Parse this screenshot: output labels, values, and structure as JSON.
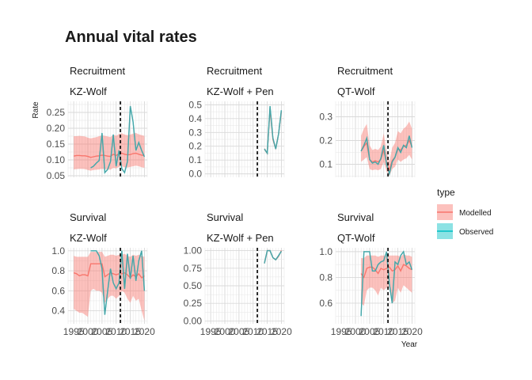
{
  "title": "Annual vital rates",
  "chart_data": {
    "type": "line",
    "title": "Annual vital rates",
    "xlabel": "Year",
    "ylabel": "Rate",
    "grid": true,
    "legend": {
      "title": "type",
      "placement": "right",
      "entries": [
        {
          "name": "Modelled",
          "color": "#F8766D"
        },
        {
          "name": "Observed",
          "color": "#00BFC4"
        }
      ]
    },
    "xlim": [
      1993,
      2021
    ],
    "xticks": [
      1995,
      2000,
      2005,
      2010,
      2015,
      2020
    ],
    "xtick_labels": [
      "1995",
      "2000",
      "2005",
      "2010",
      "2015",
      "2020"
    ],
    "vline_x": 2011.5,
    "colors": {
      "modelled_line": "#F8766D",
      "modelled_ribbon": "#F8766D",
      "observed_line": "#00BFC4",
      "overlap_line": "#8C8C8C",
      "vline": "#000000",
      "grid": "#e5e5e5"
    },
    "panels": [
      {
        "rate": "Recruitment",
        "population": "KZ-Wolf",
        "ylim": [
          0.045,
          0.285
        ],
        "yticks": [
          0.05,
          0.1,
          0.15,
          0.2,
          0.25
        ],
        "ytick_labels": [
          "0.05",
          "0.10",
          "0.15",
          "0.20",
          "0.25"
        ],
        "modelled": {
          "x": [
            1995,
            1996,
            1997,
            1998,
            1999,
            2000,
            2001,
            2002,
            2003,
            2004,
            2005,
            2006,
            2007,
            2008,
            2009,
            2010,
            2011,
            2012,
            2013,
            2014,
            2015,
            2016,
            2017,
            2018,
            2019,
            2020
          ],
          "y": [
            0.112,
            0.114,
            0.114,
            0.113,
            0.113,
            0.111,
            0.108,
            0.11,
            0.112,
            0.113,
            0.115,
            0.114,
            0.112,
            0.111,
            0.118,
            0.114,
            0.12,
            0.121,
            0.118,
            0.116,
            0.117,
            0.12,
            0.121,
            0.118,
            0.115,
            0.114
          ],
          "lower": [
            0.07,
            0.071,
            0.072,
            0.072,
            0.071,
            0.068,
            0.066,
            0.068,
            0.069,
            0.07,
            0.072,
            0.071,
            0.07,
            0.069,
            0.075,
            0.073,
            0.078,
            0.08,
            0.077,
            0.076,
            0.078,
            0.08,
            0.082,
            0.08,
            0.077,
            0.075
          ],
          "upper": [
            0.175,
            0.175,
            0.176,
            0.175,
            0.174,
            0.17,
            0.168,
            0.17,
            0.172,
            0.175,
            0.178,
            0.176,
            0.174,
            0.172,
            0.18,
            0.176,
            0.182,
            0.184,
            0.18,
            0.178,
            0.18,
            0.183,
            0.185,
            0.181,
            0.178,
            0.176
          ]
        },
        "observed": {
          "x": [
            2001,
            2002,
            2003,
            2004,
            2005,
            2006,
            2007,
            2008,
            2009,
            2010,
            2011,
            2012,
            2013,
            2014,
            2015,
            2016,
            2017,
            2018,
            2019,
            2020
          ],
          "y": [
            0.075,
            0.08,
            0.09,
            0.098,
            0.185,
            0.06,
            0.07,
            0.095,
            0.18,
            0.08,
            0.13,
            0.072,
            0.06,
            0.095,
            0.27,
            0.22,
            0.13,
            0.155,
            0.13,
            0.11
          ]
        }
      },
      {
        "rate": "Recruitment",
        "population": "KZ-Wolf + Pen",
        "ylim": [
          -0.025,
          0.525
        ],
        "yticks": [
          0.0,
          0.1,
          0.2,
          0.3,
          0.4,
          0.5
        ],
        "ytick_labels": [
          "0.0",
          "0.1",
          "0.2",
          "0.3",
          "0.4",
          "0.5"
        ],
        "modelled": {
          "x": [
            2014,
            2015,
            2016,
            2017,
            2018,
            2019,
            2020
          ],
          "y": [
            0.18,
            0.15,
            0.47,
            0.25,
            0.18,
            0.29,
            0.45
          ],
          "lower": [
            0.17,
            0.14,
            0.45,
            0.24,
            0.17,
            0.28,
            0.44
          ],
          "upper": [
            0.19,
            0.16,
            0.49,
            0.26,
            0.19,
            0.3,
            0.46
          ]
        },
        "observed": {
          "x": [
            2014,
            2015,
            2016,
            2017,
            2018,
            2019,
            2020
          ],
          "y": [
            0.18,
            0.15,
            0.49,
            0.26,
            0.18,
            0.29,
            0.46
          ]
        }
      },
      {
        "rate": "Recruitment",
        "population": "QT-Wolf",
        "ylim": [
          0.045,
          0.365
        ],
        "yticks": [
          0.1,
          0.2,
          0.3
        ],
        "ytick_labels": [
          "0.1",
          "0.2",
          "0.3"
        ],
        "modelled": {
          "x": [
            2002,
            2003,
            2004,
            2005,
            2006,
            2007,
            2008,
            2009,
            2010,
            2011,
            2012,
            2013,
            2014,
            2015,
            2016,
            2017,
            2018,
            2019,
            2020
          ],
          "y": [
            0.155,
            0.175,
            0.19,
            0.12,
            0.11,
            0.115,
            0.11,
            0.12,
            0.16,
            0.105,
            0.075,
            0.115,
            0.13,
            0.165,
            0.16,
            0.175,
            0.18,
            0.2,
            0.175
          ],
          "lower": [
            0.11,
            0.12,
            0.13,
            0.08,
            0.075,
            0.078,
            0.075,
            0.08,
            0.11,
            0.07,
            0.05,
            0.08,
            0.09,
            0.12,
            0.11,
            0.12,
            0.125,
            0.14,
            0.12
          ],
          "upper": [
            0.22,
            0.25,
            0.27,
            0.18,
            0.16,
            0.165,
            0.16,
            0.175,
            0.23,
            0.155,
            0.11,
            0.17,
            0.19,
            0.24,
            0.23,
            0.25,
            0.26,
            0.28,
            0.25
          ]
        },
        "observed": {
          "x": [
            2002,
            2003,
            2004,
            2005,
            2006,
            2007,
            2008,
            2009,
            2010,
            2011,
            2012,
            2013,
            2014,
            2015,
            2016,
            2017,
            2018,
            2019,
            2020
          ],
          "y": [
            0.155,
            0.18,
            0.21,
            0.12,
            0.105,
            0.11,
            0.1,
            0.125,
            0.18,
            0.1,
            0.06,
            0.11,
            0.13,
            0.17,
            0.15,
            0.18,
            0.17,
            0.22,
            0.17
          ]
        }
      },
      {
        "rate": "Survival",
        "population": "KZ-Wolf",
        "ylim": [
          0.27,
          1.03
        ],
        "yticks": [
          0.4,
          0.6,
          0.8,
          1.0
        ],
        "ytick_labels": [
          "0.4",
          "0.6",
          "0.8",
          "1.0"
        ],
        "modelled": {
          "x": [
            1995,
            1996,
            1997,
            1998,
            1999,
            2000,
            2001,
            2002,
            2003,
            2004,
            2005,
            2006,
            2007,
            2008,
            2009,
            2010,
            2011,
            2012,
            2013,
            2014,
            2015,
            2016,
            2017,
            2018,
            2019,
            2020
          ],
          "y": [
            0.78,
            0.77,
            0.75,
            0.76,
            0.76,
            0.75,
            0.87,
            0.87,
            0.87,
            0.87,
            0.87,
            0.74,
            0.76,
            0.78,
            0.77,
            0.76,
            0.77,
            0.77,
            0.78,
            0.76,
            0.73,
            0.76,
            0.74,
            0.77,
            0.73,
            0.75
          ],
          "lower": [
            0.42,
            0.4,
            0.38,
            0.38,
            0.36,
            0.34,
            0.6,
            0.62,
            0.6,
            0.6,
            0.58,
            0.48,
            0.52,
            0.55,
            0.55,
            0.52,
            0.55,
            0.6,
            0.58,
            0.52,
            0.48,
            0.55,
            0.5,
            0.52,
            0.4,
            0.3
          ],
          "upper": [
            0.95,
            0.94,
            0.94,
            0.94,
            0.94,
            0.94,
            0.99,
            0.99,
            0.99,
            0.99,
            0.99,
            0.94,
            0.95,
            0.96,
            0.96,
            0.95,
            0.96,
            0.96,
            0.97,
            0.95,
            0.94,
            0.96,
            0.95,
            0.96,
            0.95,
            0.94
          ]
        },
        "observed": {
          "x": [
            2001,
            2002,
            2003,
            2004,
            2005,
            2006,
            2007,
            2008,
            2009,
            2010,
            2011,
            2012,
            2013,
            2014,
            2015,
            2016,
            2017,
            2018,
            2019,
            2020
          ],
          "y": [
            1.0,
            1.0,
            1.0,
            0.95,
            0.82,
            0.36,
            0.6,
            0.82,
            0.68,
            0.62,
            0.68,
            1.0,
            0.62,
            0.97,
            0.72,
            0.95,
            0.7,
            0.9,
            1.0,
            0.6
          ]
        }
      },
      {
        "rate": "Survival",
        "population": "KZ-Wolf + Pen",
        "ylim": [
          -0.04,
          1.04
        ],
        "yticks": [
          0.0,
          0.25,
          0.5,
          0.75,
          1.0
        ],
        "ytick_labels": [
          "0.00",
          "0.25",
          "0.50",
          "0.75",
          "1.00"
        ],
        "modelled": {
          "x": [
            2014,
            2015,
            2016,
            2017,
            2018,
            2019,
            2020
          ],
          "y": [
            0.82,
            1.0,
            1.0,
            0.9,
            0.87,
            0.92,
            1.0
          ],
          "lower": [
            0.81,
            0.99,
            0.99,
            0.89,
            0.86,
            0.91,
            0.99
          ],
          "upper": [
            0.83,
            1.01,
            1.01,
            0.91,
            0.88,
            0.93,
            1.01
          ]
        },
        "observed": {
          "x": [
            2014,
            2015,
            2016,
            2017,
            2018,
            2019,
            2020
          ],
          "y": [
            0.82,
            1.0,
            1.0,
            0.9,
            0.87,
            0.93,
            0.99
          ]
        }
      },
      {
        "rate": "Survival",
        "population": "QT-Wolf",
        "ylim": [
          0.44,
          1.03
        ],
        "yticks": [
          0.6,
          0.8,
          1.0
        ],
        "ytick_labels": [
          "0.6",
          "0.8",
          "1.0"
        ],
        "modelled": {
          "x": [
            2002,
            2003,
            2004,
            2005,
            2006,
            2007,
            2008,
            2009,
            2010,
            2011,
            2012,
            2013,
            2014,
            2015,
            2016,
            2017,
            2018,
            2019,
            2020
          ],
          "y": [
            0.83,
            0.8,
            0.87,
            0.88,
            0.88,
            0.86,
            0.83,
            0.87,
            0.86,
            0.87,
            0.88,
            0.85,
            0.86,
            0.89,
            0.85,
            0.9,
            0.89,
            0.87,
            0.86
          ],
          "lower": [
            0.6,
            0.58,
            0.7,
            0.72,
            0.72,
            0.7,
            0.66,
            0.72,
            0.7,
            0.72,
            0.72,
            0.6,
            0.62,
            0.72,
            0.68,
            0.74,
            0.72,
            0.7,
            0.68
          ],
          "upper": [
            0.95,
            0.95,
            0.97,
            0.97,
            0.97,
            0.97,
            0.96,
            0.97,
            0.97,
            0.97,
            0.97,
            0.97,
            0.97,
            0.97,
            0.96,
            0.98,
            0.97,
            0.97,
            0.96
          ]
        },
        "observed": {
          "x": [
            2002,
            2003,
            2004,
            2005,
            2006,
            2007,
            2008,
            2009,
            2010,
            2011,
            2012,
            2013,
            2014,
            2015,
            2016,
            2017,
            2018,
            2019,
            2020
          ],
          "y": [
            0.5,
            1.0,
            1.0,
            1.0,
            0.85,
            0.85,
            0.9,
            0.92,
            0.93,
            1.0,
            0.75,
            0.6,
            0.92,
            0.9,
            0.97,
            1.0,
            0.9,
            0.92,
            0.86
          ]
        }
      }
    ]
  }
}
